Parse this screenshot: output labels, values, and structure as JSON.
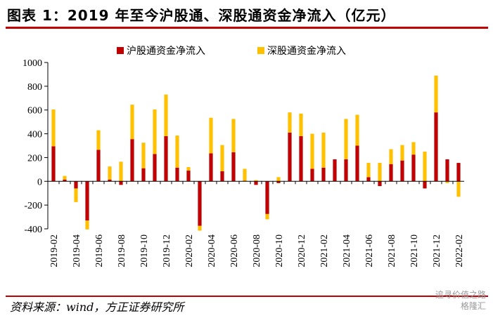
{
  "title": "图表 1：2019 年至今沪股通、深股通资金净流入（亿元）",
  "source": "资料来源：wind，方正证券研究所",
  "watermark": [
    "追寻价值之路",
    "格隆汇"
  ],
  "colors": {
    "hu": "#c00000",
    "shen": "#ffc000",
    "accent": "#c00000"
  },
  "chart_data": {
    "type": "bar",
    "stacked": true,
    "ylim": [
      -400,
      1000
    ],
    "yticks": [
      -400,
      -200,
      0,
      200,
      400,
      600,
      800,
      1000
    ],
    "legend_position": "top",
    "categories": [
      "2019-02",
      "2019-03",
      "2019-04",
      "2019-05",
      "2019-06",
      "2019-07",
      "2019-08",
      "2019-09",
      "2019-10",
      "2019-11",
      "2019-12",
      "2020-01",
      "2020-02",
      "2020-03",
      "2020-04",
      "2020-05",
      "2020-06",
      "2020-07",
      "2020-08",
      "2020-09",
      "2020-10",
      "2020-11",
      "2020-12",
      "2021-01",
      "2021-02",
      "2021-03",
      "2021-04",
      "2021-05",
      "2021-06",
      "2021-07",
      "2021-08",
      "2021-09",
      "2021-10",
      "2021-11",
      "2021-12",
      "2022-01",
      "2022-02"
    ],
    "xtick_labels": [
      "2019-02",
      "2019-04",
      "2019-06",
      "2019-08",
      "2019-10",
      "2019-12",
      "2020-02",
      "2020-04",
      "2020-06",
      "2020-08",
      "2020-10",
      "2020-12",
      "2021-02",
      "2021-04",
      "2021-06",
      "2021-08",
      "2021-10",
      "2021-12",
      "2022-02"
    ],
    "series": [
      {
        "name": "沪股通资金净流入",
        "values": [
          295,
          15,
          -60,
          -330,
          265,
          15,
          -30,
          355,
          110,
          230,
          380,
          115,
          90,
          -375,
          235,
          85,
          245,
          5,
          -30,
          -275,
          -15,
          410,
          380,
          105,
          115,
          185,
          185,
          300,
          35,
          -40,
          145,
          175,
          225,
          -60,
          580,
          185,
          155
        ]
      },
      {
        "name": "深股通资金净流入",
        "values": [
          310,
          30,
          -115,
          -75,
          165,
          110,
          165,
          290,
          215,
          375,
          350,
          270,
          30,
          -40,
          300,
          220,
          280,
          100,
          10,
          -45,
          35,
          170,
          190,
          295,
          295,
          0,
          340,
          260,
          120,
          155,
          125,
          130,
          105,
          250,
          310,
          -15,
          -130
        ]
      }
    ]
  }
}
